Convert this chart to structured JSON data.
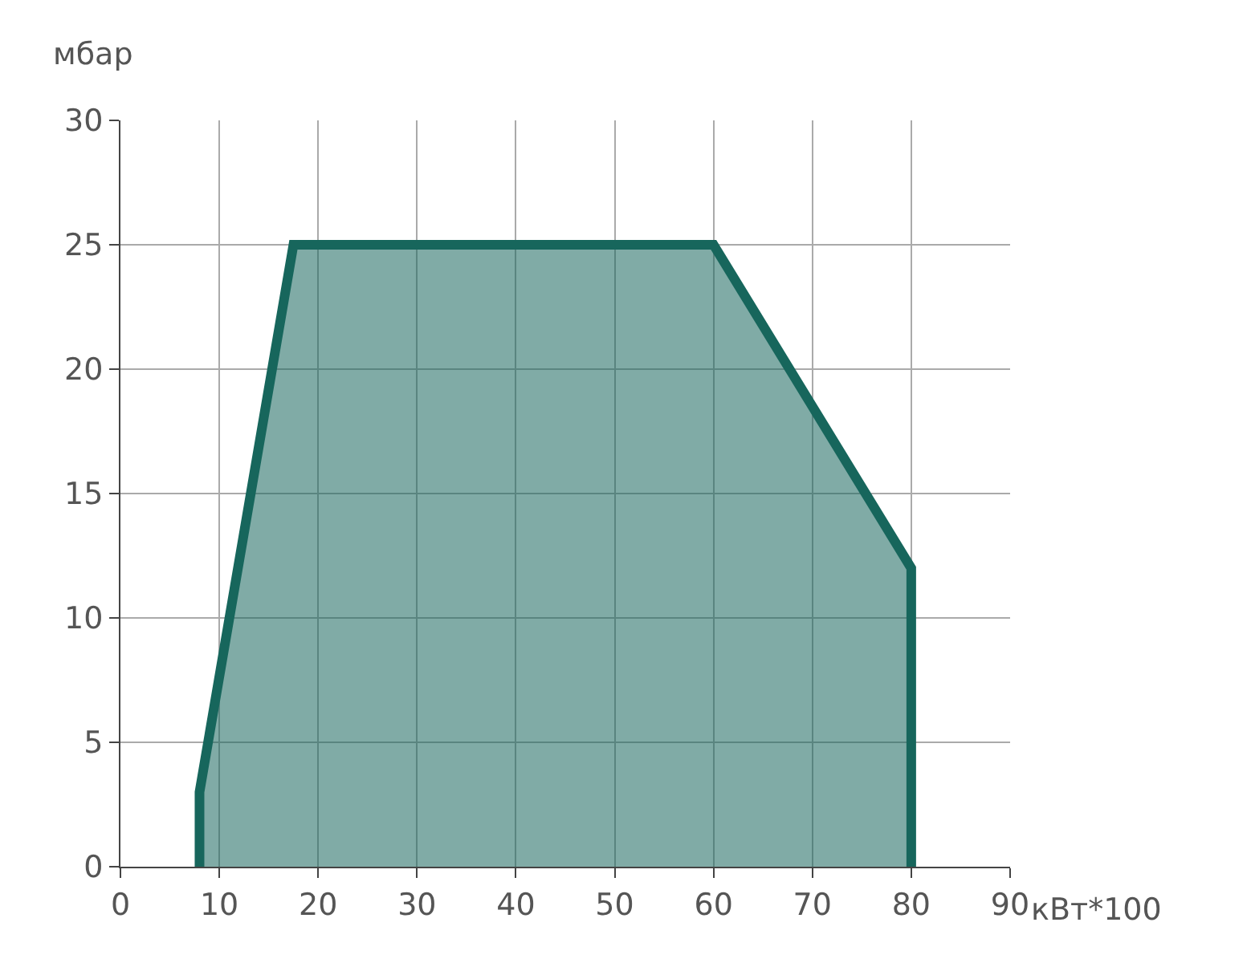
{
  "chart_data": {
    "type": "area",
    "xlabel": "кВт*100",
    "ylabel": "мбар",
    "series": [
      {
        "color": "#17665c",
        "x": [
          8,
          8,
          17.5,
          60,
          80,
          80
        ],
        "values": [
          0,
          3,
          25,
          25,
          12,
          0
        ]
      }
    ],
    "xlim": [
      0,
      90
    ],
    "xticks": [
      0,
      10,
      20,
      30,
      40,
      50,
      60,
      70,
      80,
      90
    ],
    "ylim": [
      0,
      30
    ],
    "yticks": [
      0,
      5,
      10,
      15,
      20,
      25,
      30
    ],
    "grid": true
  }
}
